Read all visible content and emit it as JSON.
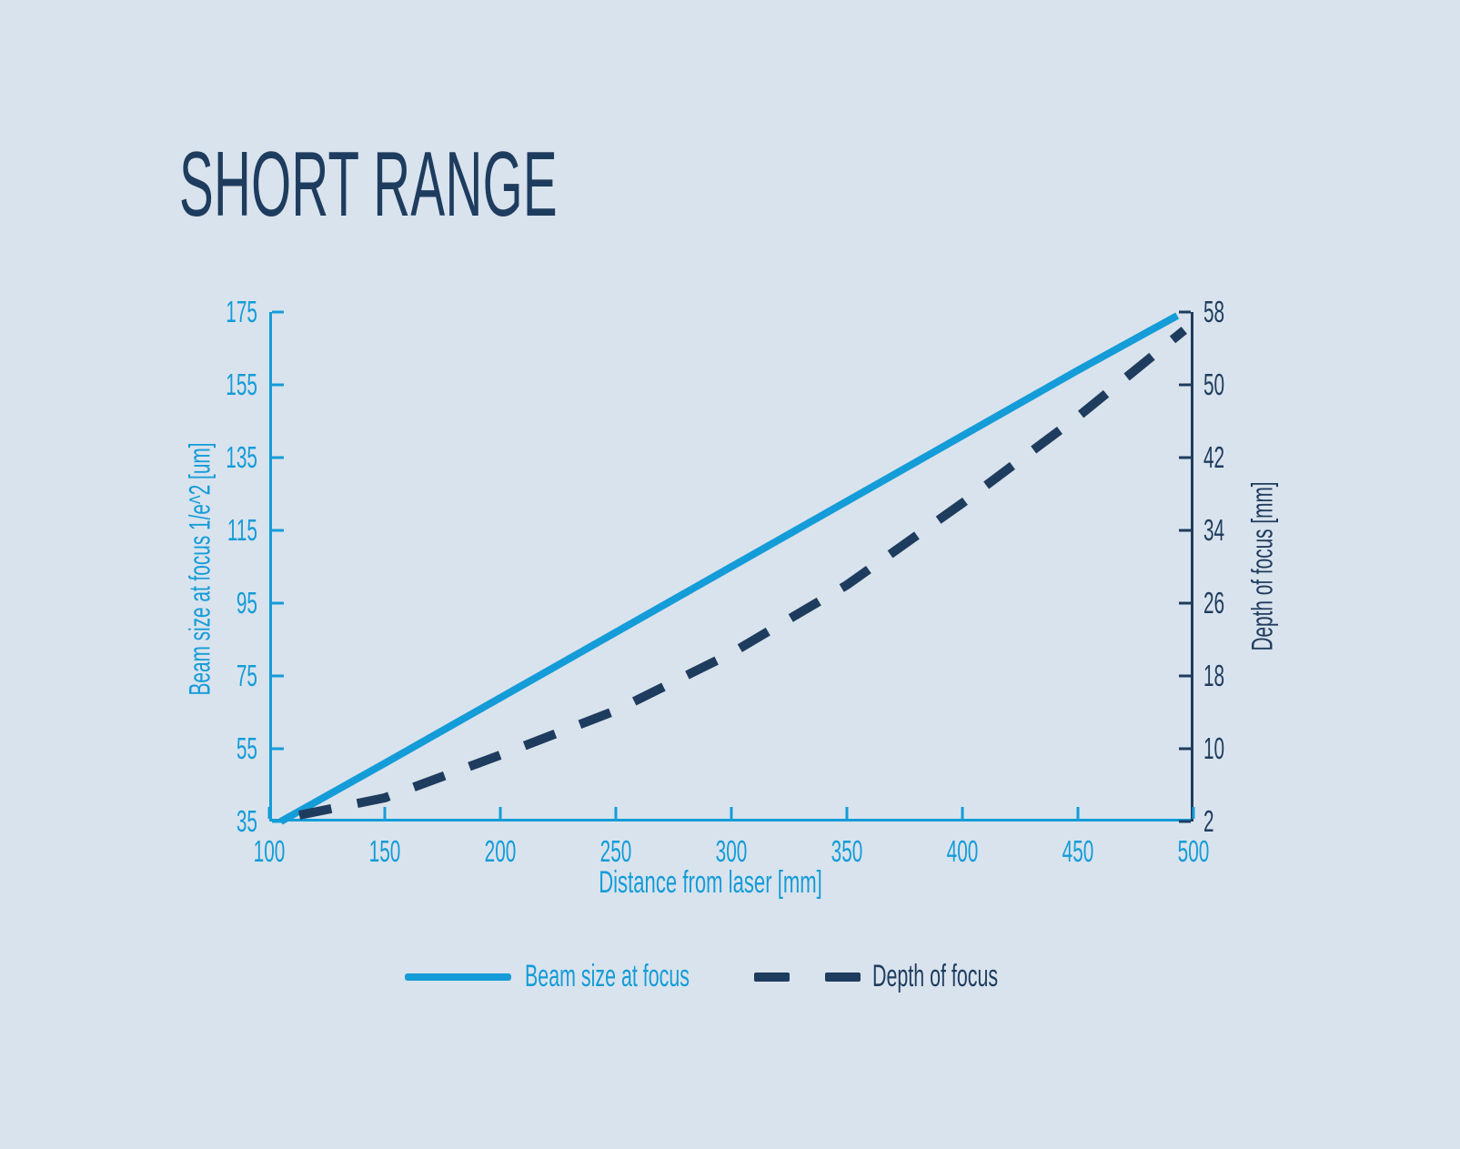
{
  "title": "SHORT RANGE",
  "colors": {
    "blue": "#149cd8",
    "navy": "#1e3c5e",
    "background": "#d9e3ed"
  },
  "legend": {
    "items": [
      {
        "label": "Beam size at focus",
        "style": "solid",
        "color": "#149cd8"
      },
      {
        "label": "Depth of focus",
        "style": "dashed",
        "color": "#1e3c5e"
      }
    ]
  },
  "chart_data": {
    "type": "line",
    "title": "SHORT RANGE",
    "xlabel": "Distance from laser [mm]",
    "ylabel_left": "Beam size at focus 1/e^2 [um]",
    "ylabel_right": "Depth of focus [mm]",
    "xlim": [
      100,
      500
    ],
    "ylim_left": [
      35,
      175
    ],
    "ylim_right": [
      2,
      58
    ],
    "x_ticks": [
      100,
      150,
      200,
      250,
      300,
      350,
      400,
      450,
      500
    ],
    "left_ticks": [
      35,
      55,
      75,
      95,
      115,
      135,
      155,
      175
    ],
    "right_ticks": [
      2,
      10,
      18,
      26,
      34,
      42,
      50,
      58
    ],
    "grid": false,
    "legend_position": "bottom",
    "series": [
      {
        "name": "Beam size at focus",
        "axis": "left",
        "style": "solid",
        "color": "#149cd8",
        "x": [
          105,
          150,
          200,
          250,
          300,
          350,
          400,
          450,
          493
        ],
        "y": [
          35,
          51,
          69,
          87,
          105,
          123,
          141,
          159,
          174
        ]
      },
      {
        "name": "Depth of focus",
        "axis": "right",
        "style": "dashed",
        "color": "#1e3c5e",
        "x": [
          113,
          150,
          200,
          250,
          300,
          350,
          400,
          450,
          496
        ],
        "y": [
          2.7,
          4.6,
          9.3,
          14.2,
          20.5,
          28,
          37,
          46.5,
          56
        ]
      }
    ]
  }
}
